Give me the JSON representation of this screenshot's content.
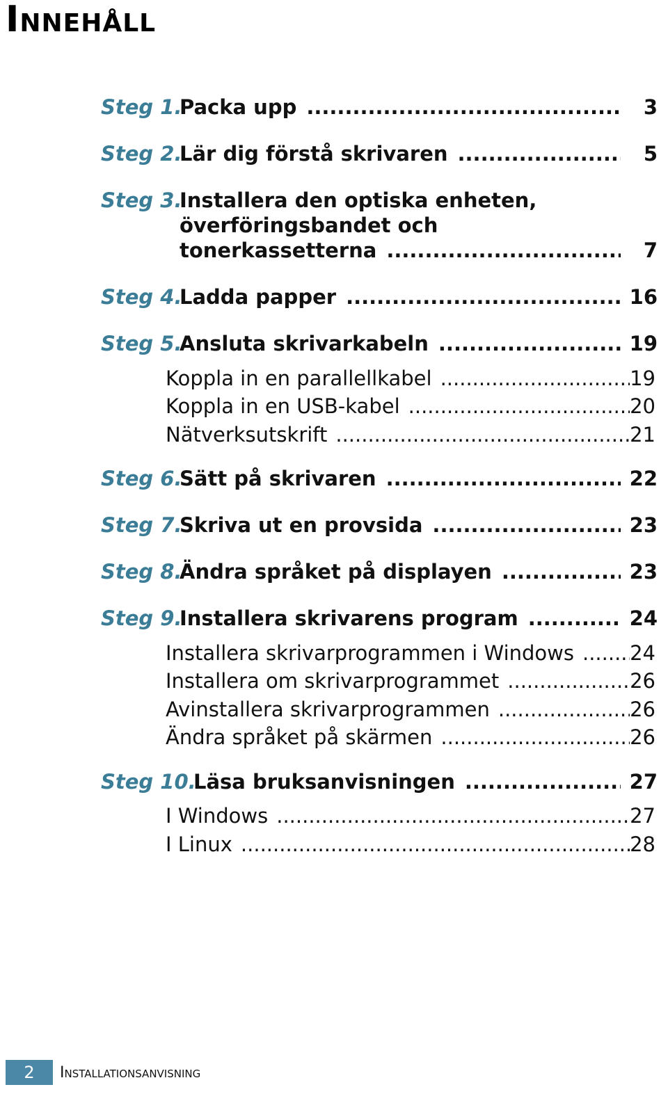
{
  "page_title": "Innehåll",
  "dots": "................................................................................................................................",
  "steps": [
    {
      "label": "Steg 1.",
      "title_lines": [],
      "title_last": "Packa upp",
      "page": "3"
    },
    {
      "label": "Steg 2.",
      "title_lines": [],
      "title_last": "Lär dig förstå skrivaren",
      "page": "5"
    },
    {
      "label": "Steg 3.",
      "title_lines": [
        "Installera den optiska enheten,",
        "överföringsbandet och"
      ],
      "title_last": "tonerkassetterna",
      "page": "7"
    },
    {
      "label": "Steg 4.",
      "title_lines": [],
      "title_last": "Ladda papper",
      "page": "16"
    },
    {
      "label": "Steg 5.",
      "title_lines": [],
      "title_last": "Ansluta skrivarkabeln",
      "page": "19"
    },
    {
      "label": "Steg 6.",
      "title_lines": [],
      "title_last": "Sätt på skrivaren",
      "page": "22"
    },
    {
      "label": "Steg 7.",
      "title_lines": [],
      "title_last": "Skriva ut en provsida",
      "page": "23"
    },
    {
      "label": "Steg 8.",
      "title_lines": [],
      "title_last": "Ändra språket på displayen",
      "page": "23"
    },
    {
      "label": "Steg 9.",
      "title_lines": [],
      "title_last": "Installera skrivarens program",
      "page": "24"
    },
    {
      "label": "Steg 10.",
      "title_lines": [],
      "title_last": "Läsa bruksanvisningen",
      "page": "27"
    }
  ],
  "subs": [
    {
      "text": "Koppla in en parallellkabel",
      "page": "19"
    },
    {
      "text": "Koppla in en USB-kabel",
      "page": "20"
    },
    {
      "text": "Nätverksutskrift",
      "page": "21"
    },
    {
      "text": "Installera skrivarprogrammen i Windows",
      "page": "24"
    },
    {
      "text": "Installera om skrivarprogrammet",
      "page": "26"
    },
    {
      "text": "Avinstallera skrivarprogrammen",
      "page": "26"
    },
    {
      "text": "Ändra språket på skärmen",
      "page": "26"
    },
    {
      "text": "I Windows",
      "page": "27"
    },
    {
      "text": "I Linux",
      "page": "28"
    }
  ],
  "footer": {
    "page_number": "2",
    "manual_title": "Installationsanvisning"
  }
}
